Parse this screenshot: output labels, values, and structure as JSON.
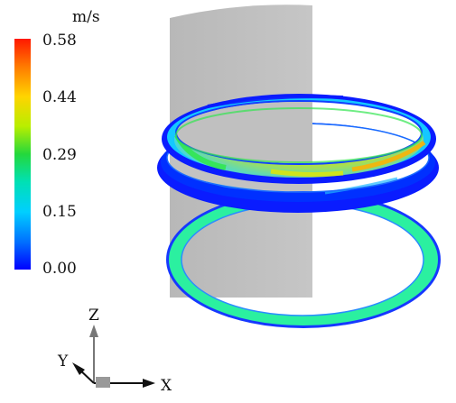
{
  "legend": {
    "unit": "m/s",
    "ticks": [
      "0.58",
      "0.44",
      "0.29",
      "0.15",
      "0.00"
    ],
    "tick_values": [
      0.58,
      0.44,
      0.29,
      0.15,
      0.0
    ],
    "colors": [
      "#ff1800",
      "#ffd000",
      "#28dc28",
      "#00e6ff",
      "#0000ff"
    ]
  },
  "axes": {
    "z": "Z",
    "y": "Y",
    "x": "X"
  },
  "colors": {
    "pipe": "#bdbdbd",
    "ring_low": "#0a1cff",
    "ring_bottom_fill": "#2bf0a0",
    "ring_mid": "#14c8ff",
    "ring_hot": "#ffb000",
    "ring_green": "#32e650"
  }
}
